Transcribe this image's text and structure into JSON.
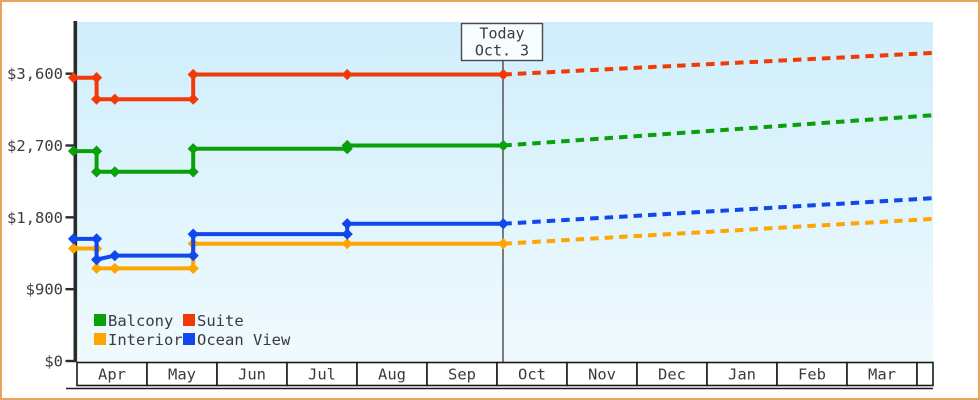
{
  "window": {
    "background": "#ffffff",
    "border_color": "#e9a45b"
  },
  "chart_data": {
    "type": "line",
    "title": "",
    "description": "Cabin price history by category with dotted projected future prices",
    "today_marker": {
      "label": "Today",
      "date": "Oct. 3",
      "month_offset": 6.09
    },
    "x_axis": {
      "months": [
        "Apr",
        "May",
        "Jun",
        "Jul",
        "Aug",
        "Sep",
        "Oct",
        "Nov",
        "Dec",
        "Jan",
        "Feb",
        "Mar"
      ]
    },
    "y_axis": {
      "ticks": [
        {
          "label": "$3,600",
          "value": 3600
        },
        {
          "label": "$2,700",
          "value": 2700
        },
        {
          "label": "$1,800",
          "value": 1800
        },
        {
          "label": "$900",
          "value": 900
        },
        {
          "label": "$0",
          "value": 0
        }
      ],
      "min": 0,
      "max": 4250
    },
    "plot_background": {
      "top": "#cfeefb",
      "bottom": "#f0fafe"
    },
    "series": [
      {
        "name": "Balcony",
        "color": "#0aa00a",
        "points": [
          {
            "date": "Apr 1",
            "m": -0.05,
            "price": 2630
          },
          {
            "date": "Apr 9",
            "m": 0.28,
            "price": 2630
          },
          {
            "date": "Apr 9",
            "m": 0.28,
            "price": 2370
          },
          {
            "date": "Apr 17",
            "m": 0.54,
            "price": 2370
          },
          {
            "date": "May 21",
            "m": 1.66,
            "price": 2370
          },
          {
            "date": "May 21",
            "m": 1.66,
            "price": 2660
          },
          {
            "date": "Jul 27",
            "m": 3.86,
            "price": 2660
          },
          {
            "date": "Jul 27",
            "m": 3.86,
            "price": 2700
          },
          {
            "date": "Oct 3",
            "m": 6.09,
            "price": 2700
          }
        ],
        "projection": {
          "m": 12.23,
          "price": 3080
        }
      },
      {
        "name": "Suite",
        "color": "#f23a08",
        "points": [
          {
            "date": "Apr 1",
            "m": -0.05,
            "price": 3550
          },
          {
            "date": "Apr 9",
            "m": 0.28,
            "price": 3550
          },
          {
            "date": "Apr 9",
            "m": 0.28,
            "price": 3280
          },
          {
            "date": "Apr 17",
            "m": 0.54,
            "price": 3280
          },
          {
            "date": "May 21",
            "m": 1.66,
            "price": 3280
          },
          {
            "date": "May 21",
            "m": 1.66,
            "price": 3590
          },
          {
            "date": "Jul 27",
            "m": 3.86,
            "price": 3590
          },
          {
            "date": "Oct 3",
            "m": 6.09,
            "price": 3590
          }
        ],
        "projection": {
          "m": 12.23,
          "price": 3860
        }
      },
      {
        "name": "Interior",
        "color": "#ffa502",
        "points": [
          {
            "date": "Apr 1",
            "m": -0.05,
            "price": 1410
          },
          {
            "date": "Apr 9",
            "m": 0.28,
            "price": 1410
          },
          {
            "date": "Apr 9",
            "m": 0.28,
            "price": 1160
          },
          {
            "date": "Apr 17",
            "m": 0.54,
            "price": 1160
          },
          {
            "date": "May 21",
            "m": 1.66,
            "price": 1160
          },
          {
            "date": "May 21",
            "m": 1.66,
            "price": 1470
          },
          {
            "date": "Jul 27",
            "m": 3.86,
            "price": 1470
          },
          {
            "date": "Oct 3",
            "m": 6.09,
            "price": 1470
          }
        ],
        "projection": {
          "m": 12.23,
          "price": 1780
        }
      },
      {
        "name": "Ocean View",
        "color": "#1048eb",
        "points": [
          {
            "date": "Apr 1",
            "m": -0.05,
            "price": 1530
          },
          {
            "date": "Apr 9",
            "m": 0.28,
            "price": 1530
          },
          {
            "date": "Apr 9",
            "m": 0.28,
            "price": 1270
          },
          {
            "date": "Apr 17",
            "m": 0.54,
            "price": 1320
          },
          {
            "date": "May 21",
            "m": 1.66,
            "price": 1320
          },
          {
            "date": "May 21",
            "m": 1.66,
            "price": 1590
          },
          {
            "date": "Jul 27",
            "m": 3.86,
            "price": 1590
          },
          {
            "date": "Jul 27",
            "m": 3.86,
            "price": 1720
          },
          {
            "date": "Oct 3",
            "m": 6.09,
            "price": 1720
          }
        ],
        "projection": {
          "m": 12.23,
          "price": 2040
        }
      }
    ]
  }
}
